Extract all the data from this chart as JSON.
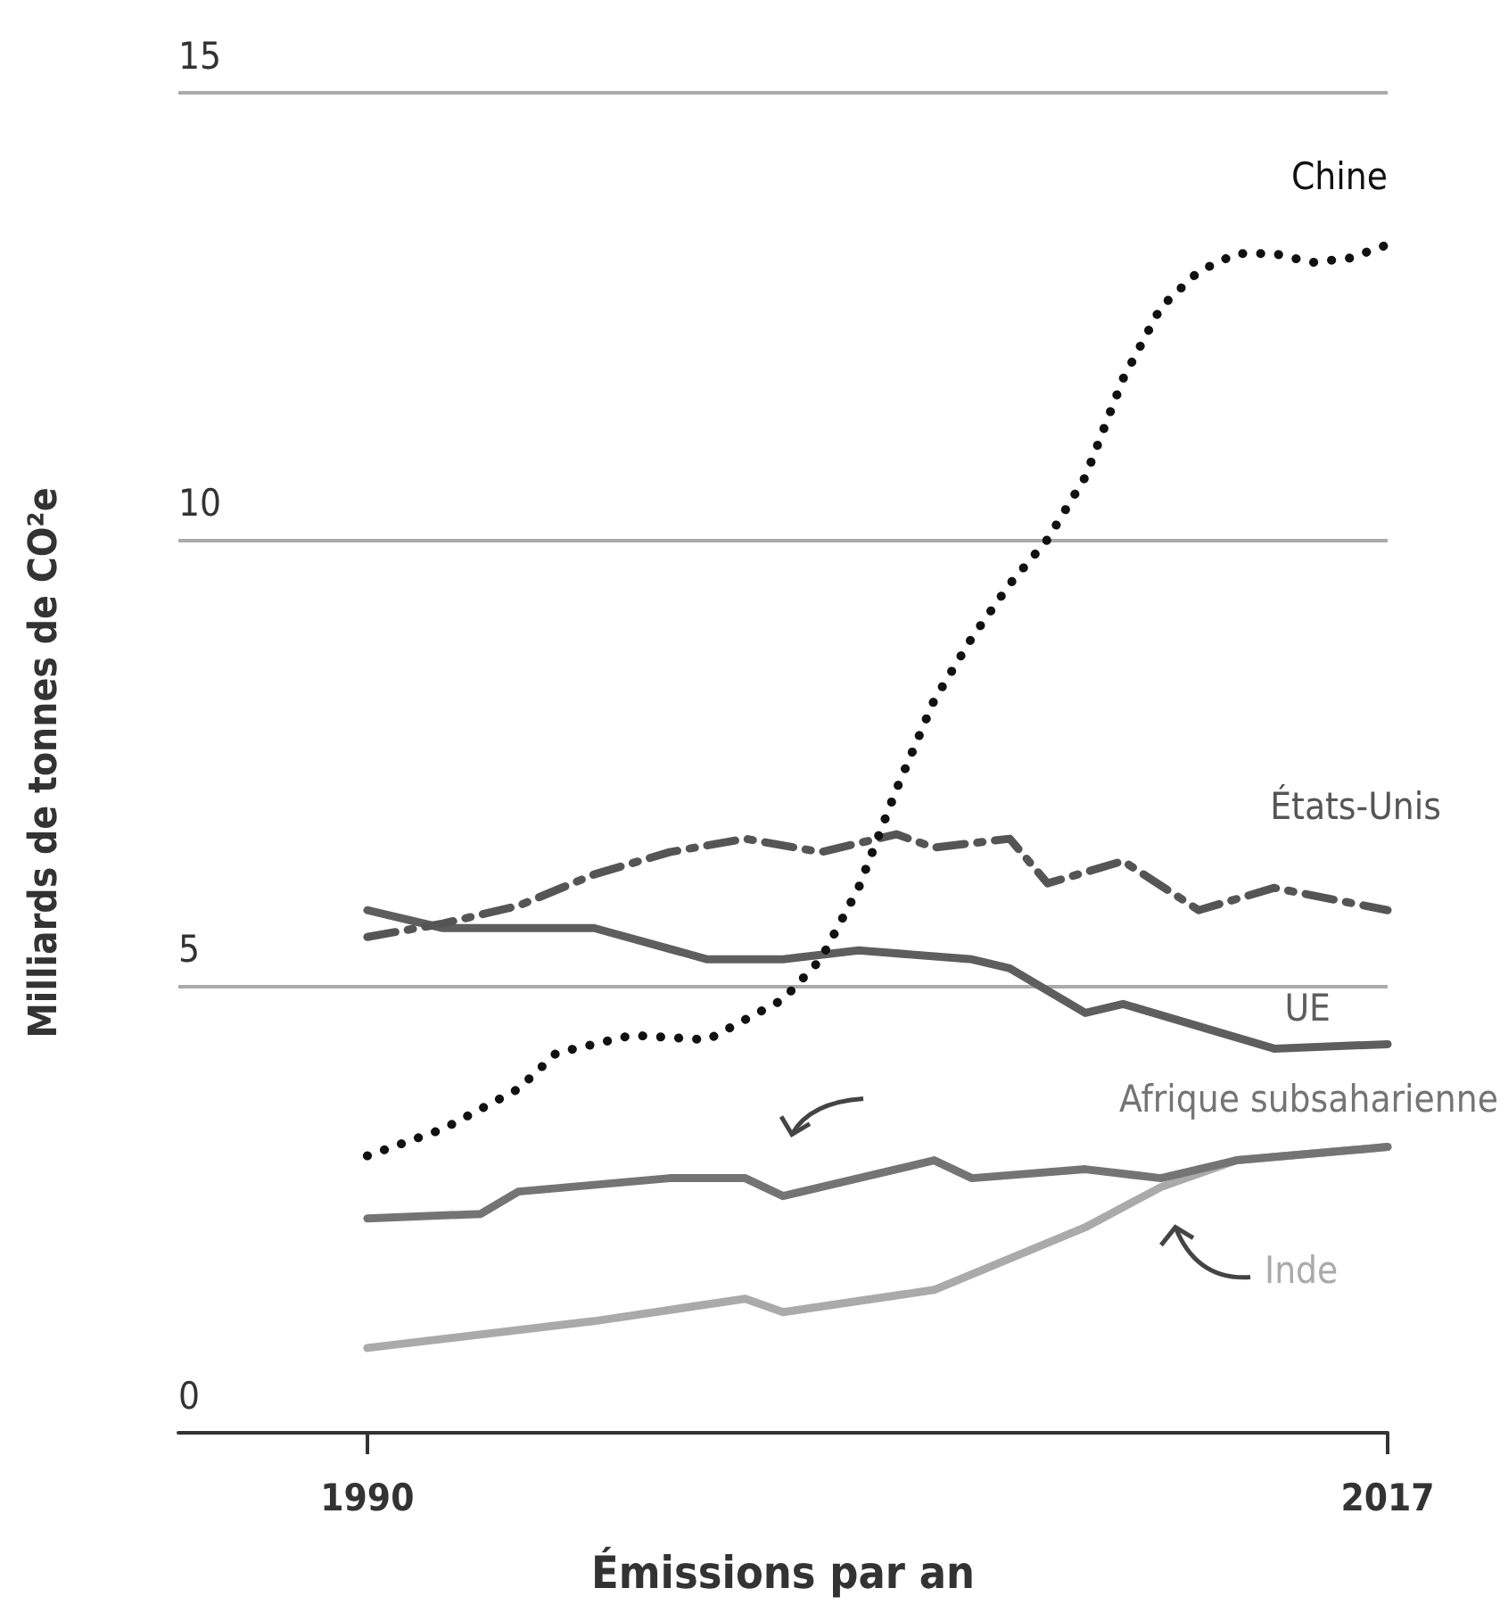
{
  "chart_data": {
    "type": "line",
    "xlabel": "Émissions par an",
    "ylabel": "Milliards de tonnes de CO²e",
    "xlim": [
      1985,
      2017
    ],
    "xticks": [
      1990,
      2017
    ],
    "ylim": [
      0,
      15
    ],
    "yticks": [
      0,
      5,
      10,
      15
    ],
    "grid": "y",
    "legend": false,
    "marker": "none",
    "series": [
      {
        "name": "Chine",
        "color": "#111111",
        "line_style": "dotted",
        "x": [
          1990,
          1992,
          1994,
          1995,
          1997,
          1999,
          2001,
          2002,
          2003,
          2004,
          2005,
          2006,
          2007,
          2008,
          2009,
          2010,
          2011,
          2012,
          2013,
          2014,
          2015,
          2016,
          2017
        ],
        "values": [
          3.1,
          3.4,
          3.85,
          4.25,
          4.45,
          4.4,
          4.85,
          5.3,
          6.1,
          7.2,
          8.2,
          8.9,
          9.5,
          10.0,
          10.7,
          11.8,
          12.6,
          13.0,
          13.2,
          13.2,
          13.1,
          13.15,
          13.3
        ]
      },
      {
        "name": "États-Unis",
        "color": "#555555",
        "line_style": "dashed",
        "x": [
          1990,
          1992,
          1994,
          1996,
          1998,
          2000,
          2002,
          2004,
          2005,
          2007,
          2008,
          2010,
          2012,
          2014,
          2017
        ],
        "values": [
          5.55,
          5.7,
          5.9,
          6.25,
          6.5,
          6.65,
          6.5,
          6.7,
          6.55,
          6.65,
          6.15,
          6.4,
          5.85,
          6.1,
          5.85
        ]
      },
      {
        "name": "UE",
        "color": "#5e5e5e",
        "line_style": "solid",
        "x": [
          1990,
          1992,
          1996,
          1999,
          2001,
          2003,
          2006,
          2007,
          2009,
          2010,
          2014,
          2017
        ],
        "values": [
          5.85,
          5.65,
          5.65,
          5.3,
          5.3,
          5.4,
          5.3,
          5.2,
          4.7,
          4.8,
          4.3,
          4.35
        ]
      },
      {
        "name": "Afrique subsaharienne",
        "color": "#747474",
        "line_style": "solid",
        "x": [
          1990,
          1993,
          1994,
          1998,
          2000,
          2001,
          2005,
          2006,
          2009,
          2011,
          2013,
          2017
        ],
        "values": [
          2.4,
          2.45,
          2.7,
          2.85,
          2.85,
          2.65,
          3.05,
          2.85,
          2.95,
          2.85,
          3.05,
          3.2
        ]
      },
      {
        "name": "Inde",
        "color": "#aaaaaa",
        "line_style": "solid",
        "x": [
          1990,
          1996,
          2000,
          2001,
          2005,
          2009,
          2011,
          2013,
          2017
        ],
        "values": [
          0.95,
          1.25,
          1.5,
          1.35,
          1.6,
          2.3,
          2.75,
          3.05,
          3.2
        ]
      }
    ]
  }
}
